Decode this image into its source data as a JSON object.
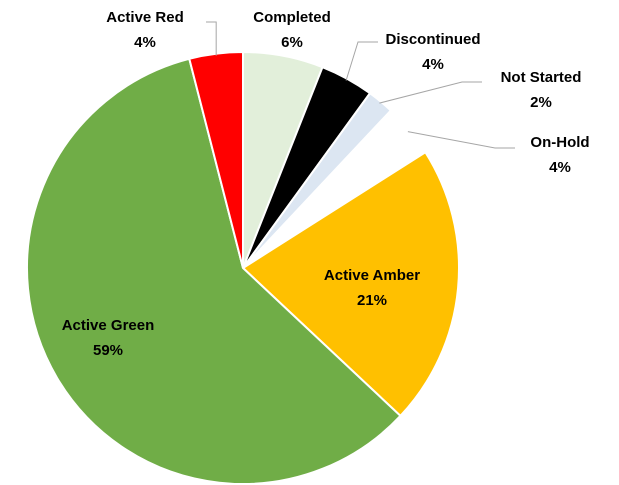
{
  "chart_data": {
    "type": "pie",
    "categories": [
      "Completed",
      "Discontinued",
      "Not Started",
      "On-Hold",
      "Active Amber",
      "Active Green",
      "Active Red"
    ],
    "values": [
      6,
      4,
      2,
      4,
      21,
      59,
      4
    ],
    "value_labels": [
      "6%",
      "4%",
      "2%",
      "4%",
      "21%",
      "59%",
      "4%"
    ],
    "colors": [
      "#e2efda",
      "#000000",
      "#dce6f2",
      "#ffffff",
      "#ffc000",
      "#70ad47",
      "#ff0000"
    ]
  }
}
